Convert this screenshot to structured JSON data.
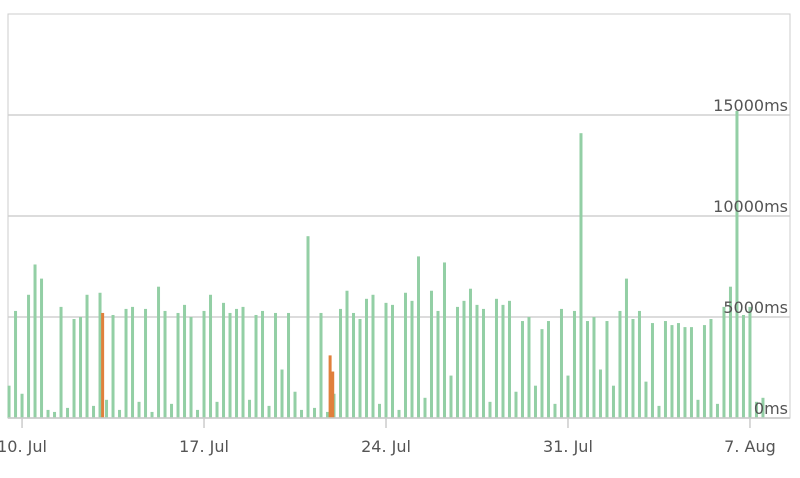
{
  "chart_data": {
    "type": "bar",
    "xlim": [
      -0.54,
      29.54
    ],
    "xticks": [
      {
        "value": 0,
        "label": "10. Jul"
      },
      {
        "value": 7,
        "label": "17. Jul"
      },
      {
        "value": 14,
        "label": "24. Jul"
      },
      {
        "value": 21,
        "label": "31. Jul"
      },
      {
        "value": 28,
        "label": "7. Aug"
      }
    ],
    "ylim": [
      0,
      20000
    ],
    "yticks": [
      {
        "value": 0,
        "label": "0ms"
      },
      {
        "value": 5000,
        "label": "5000ms"
      },
      {
        "value": 10000,
        "label": "10000ms"
      },
      {
        "value": 15000,
        "label": "15000ms"
      }
    ],
    "grid": true,
    "series": [
      {
        "color": "#93cfa5",
        "x": [
          -0.5,
          -0.25,
          0,
          0.25,
          0.5,
          0.75,
          1,
          1.25,
          1.5,
          1.75,
          2,
          2.25,
          2.5,
          2.75,
          3,
          3.25,
          3.5,
          3.75,
          4,
          4.25,
          4.5,
          4.75,
          5,
          5.25,
          5.5,
          5.75,
          6,
          6.25,
          6.5,
          6.75,
          7,
          7.25,
          7.5,
          7.75,
          8,
          8.25,
          8.5,
          8.75,
          9,
          9.25,
          9.5,
          9.75,
          10,
          10.25,
          10.5,
          10.75,
          11,
          11.25,
          11.5,
          11.75,
          12,
          12.25,
          12.5,
          12.75,
          13,
          13.25,
          13.5,
          13.75,
          14,
          14.25,
          14.5,
          14.75,
          15,
          15.25,
          15.5,
          15.75,
          16,
          16.25,
          16.5,
          16.75,
          17,
          17.25,
          17.5,
          17.75,
          18,
          18.25,
          18.5,
          18.75,
          19,
          19.25,
          19.5,
          19.75,
          20,
          20.25,
          20.5,
          20.75,
          21,
          21.25,
          21.5,
          21.75,
          22,
          22.25,
          22.5,
          22.75,
          23,
          23.25,
          23.5,
          23.75,
          24,
          24.25,
          24.5,
          24.75,
          25,
          25.25,
          25.5,
          25.75,
          26,
          26.25,
          26.5,
          26.75,
          27,
          27.25,
          27.5,
          27.75,
          28,
          28.25,
          28.5
        ],
        "values": [
          1600,
          5300,
          1200,
          6100,
          7600,
          6900,
          400,
          300,
          5500,
          500,
          4900,
          5000,
          6100,
          600,
          6200,
          900,
          5100,
          400,
          5400,
          5500,
          800,
          5400,
          300,
          6500,
          5300,
          700,
          5200,
          5600,
          5000,
          400,
          5300,
          6100,
          800,
          5700,
          5200,
          5400,
          5500,
          900,
          5100,
          5300,
          600,
          5200,
          2400,
          5200,
          1300,
          400,
          9000,
          500,
          5200,
          300,
          1200,
          5400,
          6300,
          5200,
          4900,
          5900,
          6100,
          700,
          5700,
          5600,
          400,
          6200,
          5800,
          8000,
          1000,
          6300,
          5300,
          7700,
          2100,
          5500,
          5800,
          6400,
          5600,
          5400,
          800,
          5900,
          5600,
          5800,
          1300,
          4800,
          5000,
          1600,
          4400,
          4800,
          700,
          5400,
          2100,
          5300,
          14100,
          4800,
          5000,
          2400,
          4800,
          1600,
          5300,
          6900,
          4900,
          5300,
          1800,
          4700,
          600,
          4800,
          4600,
          4700,
          4500,
          4500,
          900,
          4600,
          4900,
          700,
          5500,
          6500,
          15200,
          5100,
          5500,
          800,
          1000
        ]
      },
      {
        "color": "#e0803c",
        "x": [
          3.1,
          11.85,
          11.95
        ],
        "values": [
          5200,
          3100,
          2300
        ]
      }
    ]
  }
}
